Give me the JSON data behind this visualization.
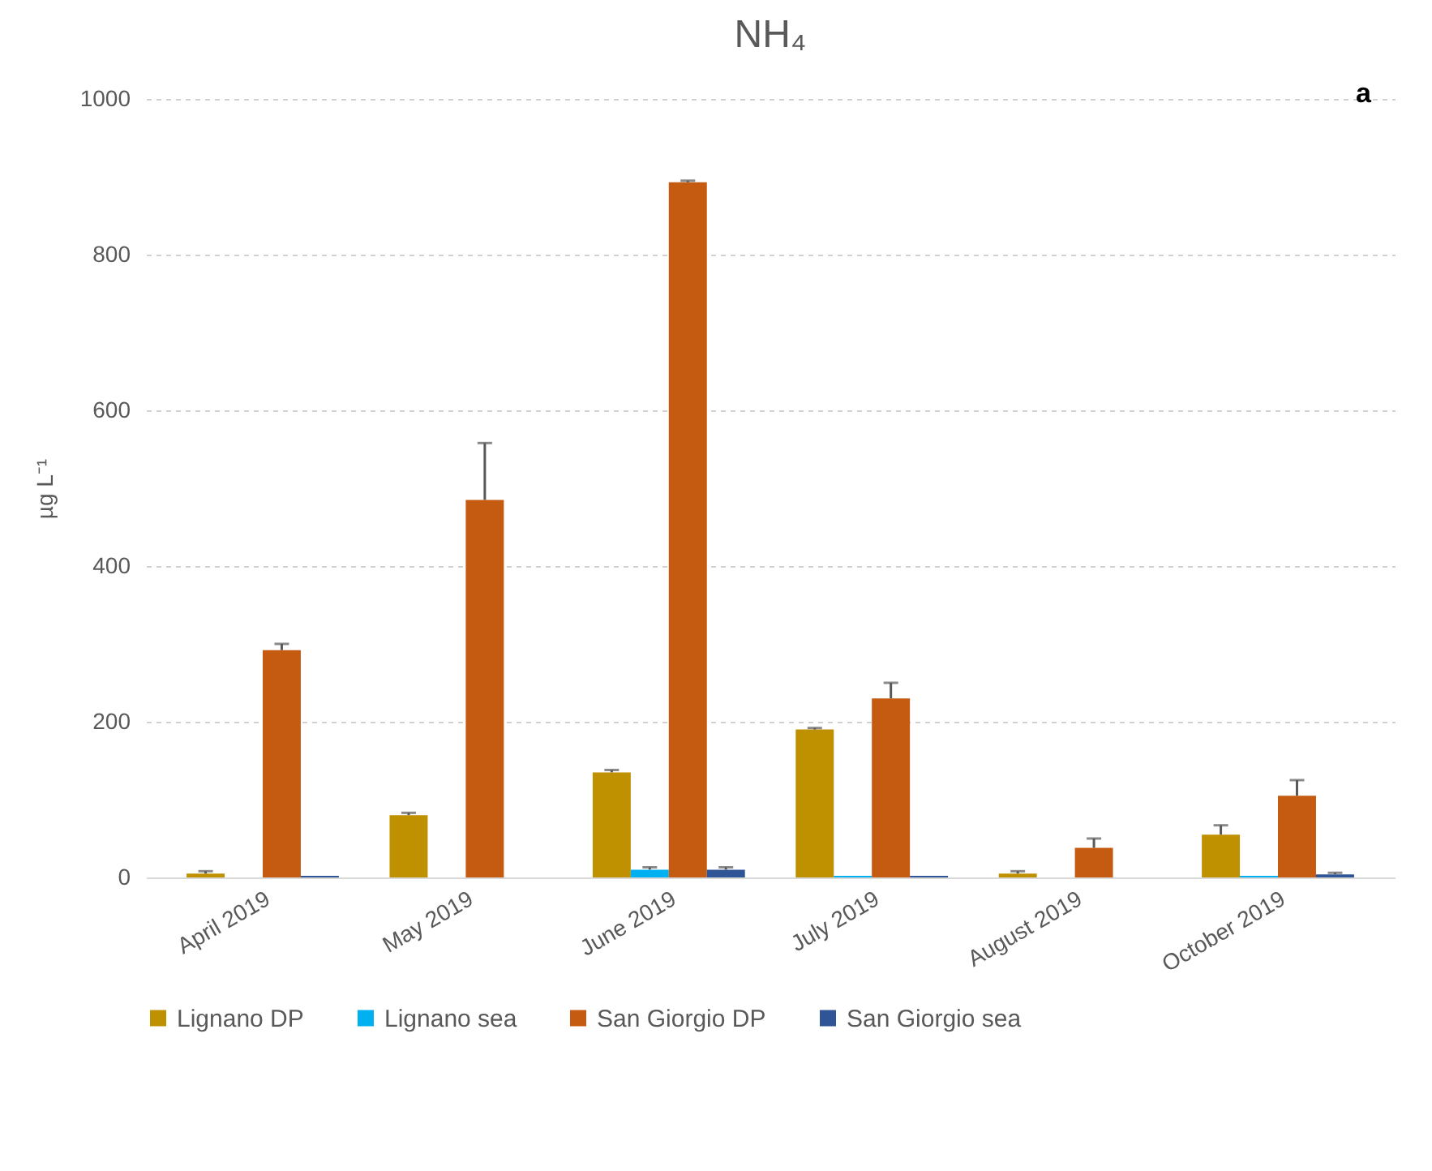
{
  "chart_data": {
    "type": "bar",
    "title": "NH₄",
    "ylabel": "µg L⁻¹",
    "annotations": [
      "a"
    ],
    "categories": [
      "April 2019",
      "May 2019",
      "June 2019",
      "July 2019",
      "August 2019",
      "October 2019"
    ],
    "series": [
      {
        "name": "Lignano DP",
        "color": "#bf9000",
        "values": [
          5,
          80,
          135,
          190,
          5,
          55
        ],
        "errors": [
          [
            5,
            8
          ],
          [
            80,
            83
          ],
          [
            135,
            138
          ],
          [
            190,
            192
          ],
          [
            5,
            8
          ],
          [
            55,
            67
          ]
        ]
      },
      {
        "name": "Lignano sea",
        "color": "#00b0f0",
        "values": [
          null,
          null,
          10,
          2,
          null,
          2
        ],
        "errors": [
          null,
          null,
          [
            10,
            13
          ],
          null,
          null,
          null
        ]
      },
      {
        "name": "San Giorgio DP",
        "color": "#c55a11",
        "values": [
          292,
          485,
          893,
          230,
          38,
          105
        ],
        "errors": [
          [
            292,
            300
          ],
          [
            485,
            558
          ],
          [
            893,
            895
          ],
          [
            230,
            250
          ],
          [
            38,
            50
          ],
          [
            105,
            125
          ]
        ]
      },
      {
        "name": "San Giorgio sea",
        "color": "#2f5597",
        "values": [
          2,
          null,
          10,
          2,
          null,
          4
        ],
        "errors": [
          null,
          null,
          [
            10,
            13
          ],
          null,
          null,
          [
            4,
            6
          ]
        ]
      }
    ],
    "ylim": [
      0,
      1000
    ],
    "yticks": [
      0,
      200,
      400,
      600,
      800,
      1000
    ],
    "grid": "y",
    "legend": "bottom"
  }
}
